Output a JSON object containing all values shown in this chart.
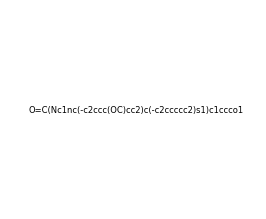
{
  "smiles": "O=C(Nc1nc(-c2ccc(OC)cc2)c(-c2ccccc2)s1)c1ccco1",
  "title": "",
  "background_color": "#ffffff",
  "figsize": [
    2.66,
    2.19
  ],
  "dpi": 100
}
